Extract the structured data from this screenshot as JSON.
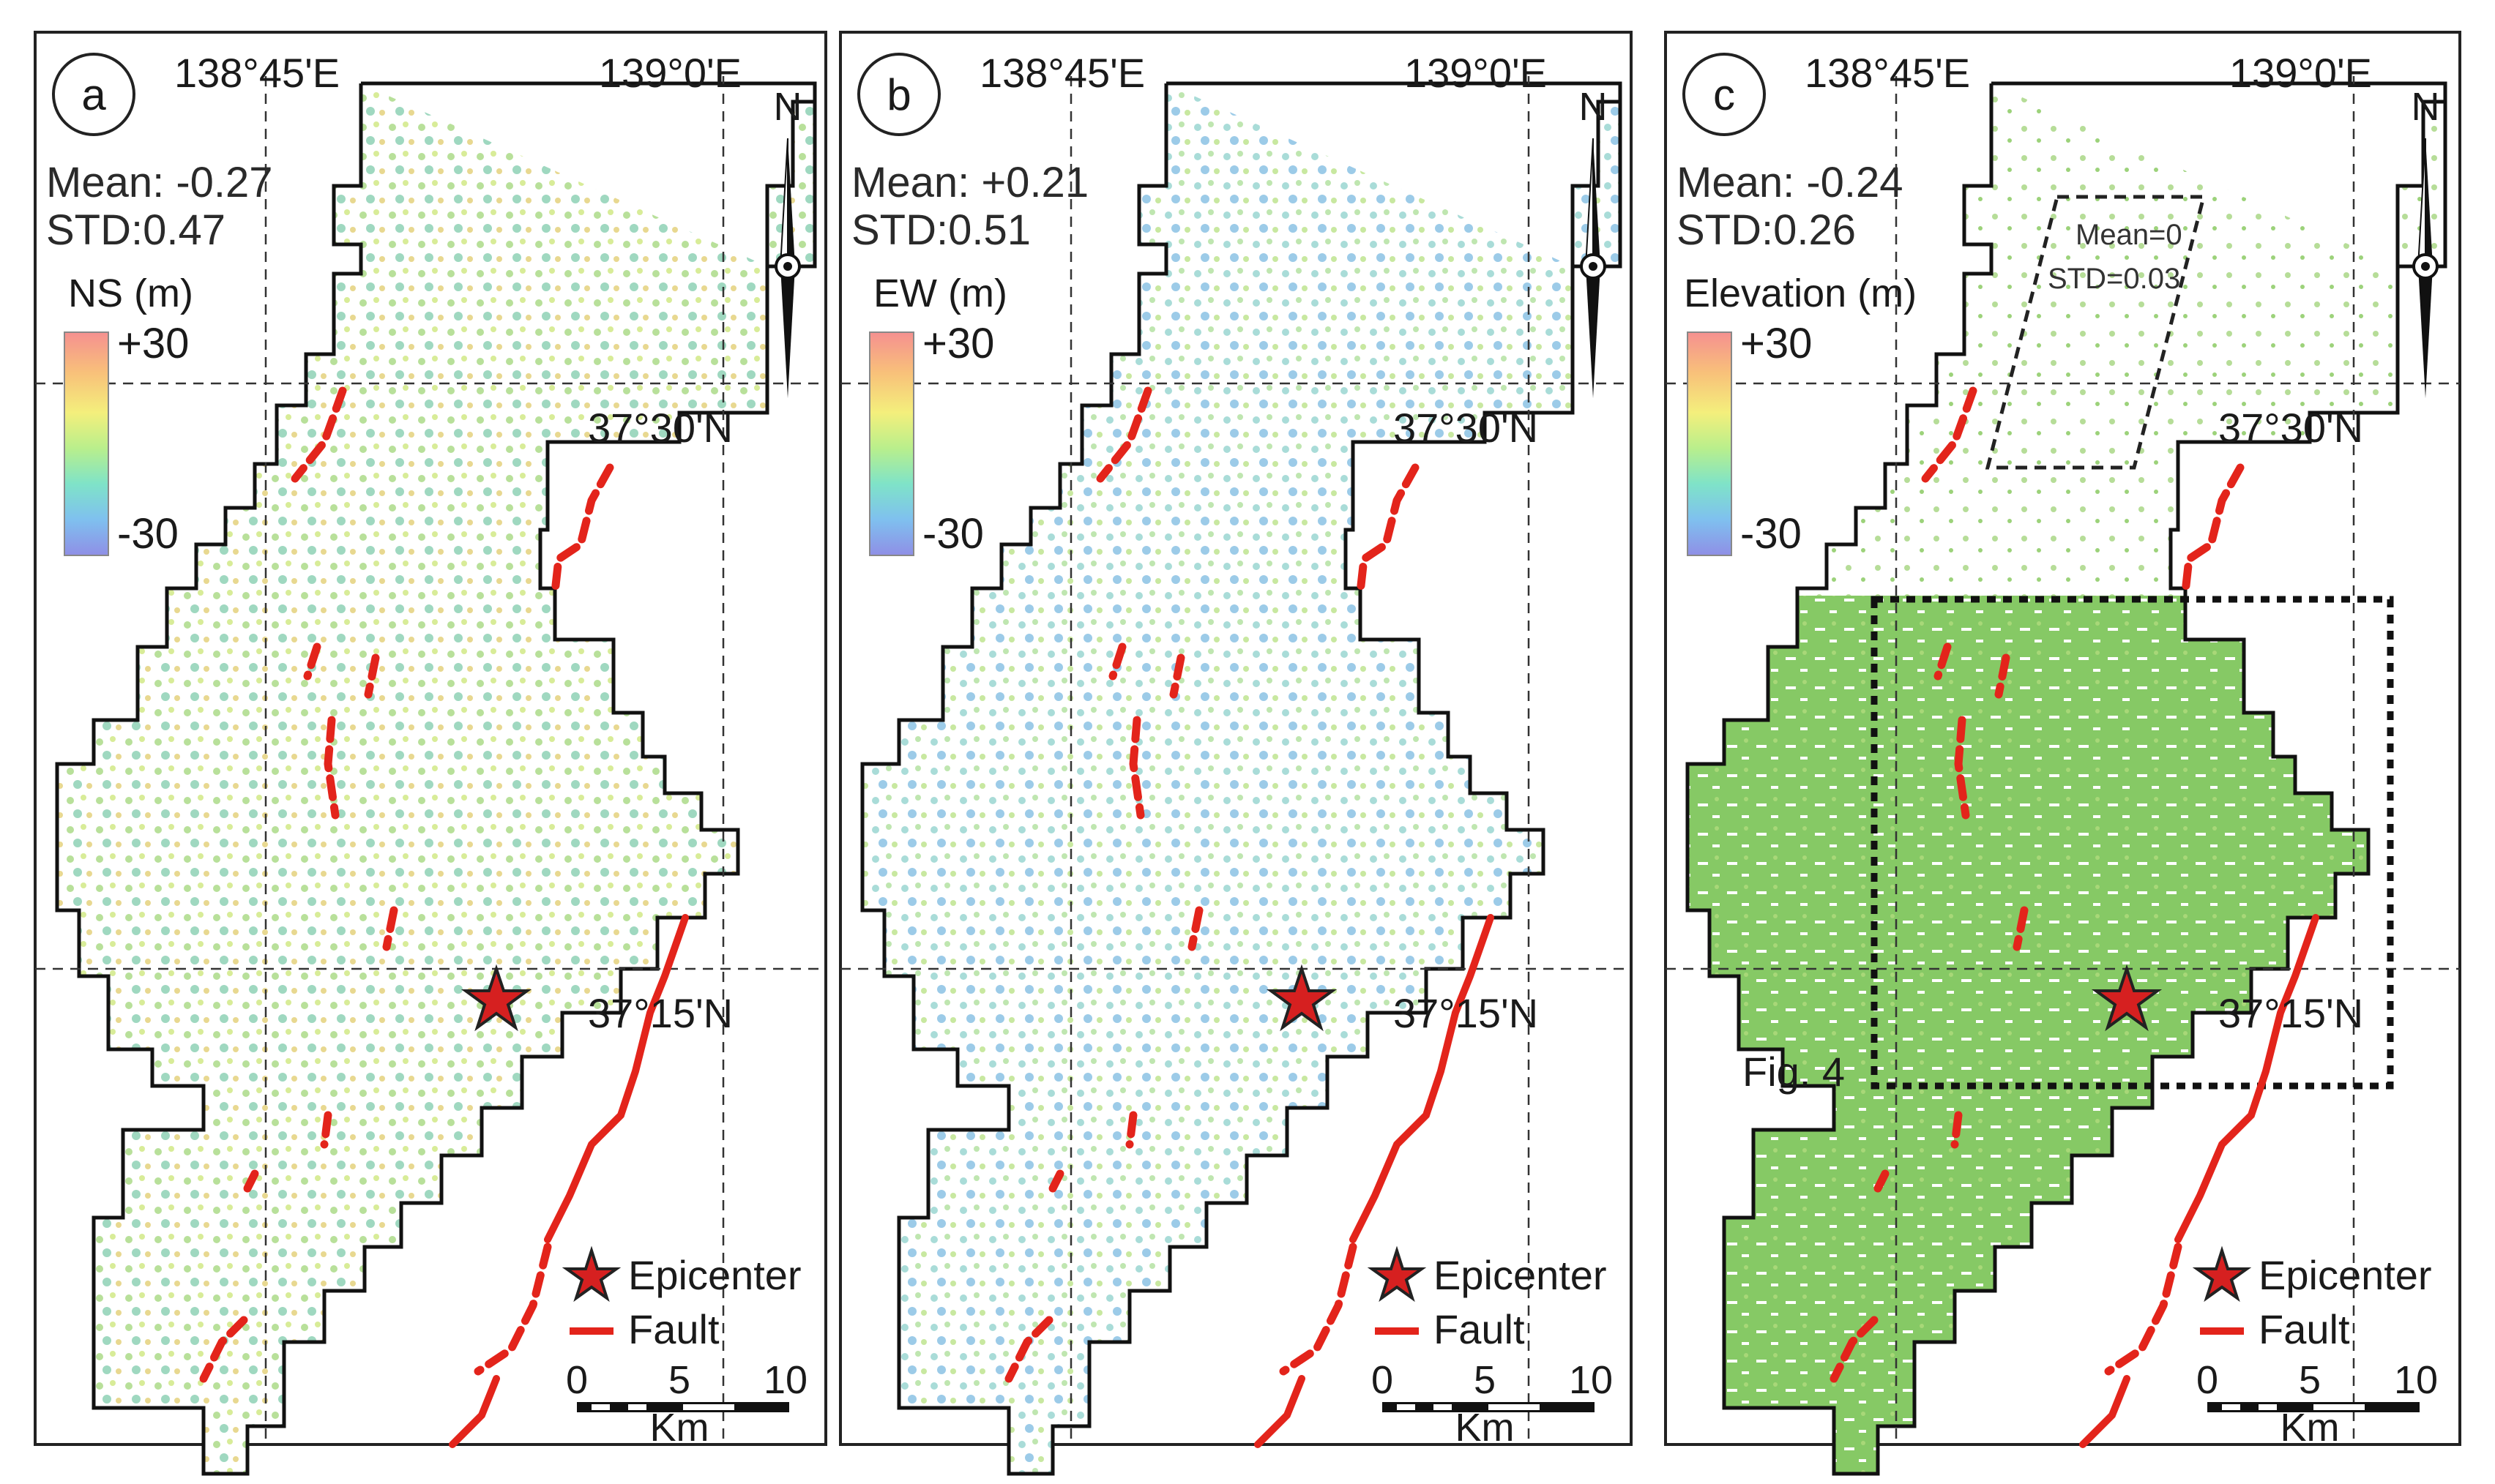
{
  "panels": [
    {
      "letter": "a",
      "mean": "Mean: -0.27",
      "std": "STD:0.47",
      "colorbar_title": "NS (m)",
      "cbar_max": "+30",
      "cbar_min": "-30",
      "fill_color": "#cfe6a8"
    },
    {
      "letter": "b",
      "mean": "Mean: +0.21",
      "std": "STD:0.51",
      "colorbar_title": "EW (m)",
      "cbar_max": "+30",
      "cbar_min": "-30",
      "fill_color": "#bfe3df"
    },
    {
      "letter": "c",
      "mean": "Mean: -0.24",
      "std": "STD:0.26",
      "colorbar_title": "Elevation (m)",
      "cbar_max": "+30",
      "cbar_min": "-30",
      "fill_color": "#8fcf6b"
    }
  ],
  "coords": {
    "lon1": "138°45'E",
    "lon2": "139°0'E",
    "lat1": "37°30'N",
    "lat2": "37°15'N"
  },
  "north": "N",
  "legend": {
    "epicenter": "Epicenter",
    "fault": "Fault"
  },
  "scalebar": {
    "ticks": [
      "0",
      "5",
      "10"
    ],
    "unit": "Km"
  },
  "panel_c_extra": {
    "stable_mean": "Mean=0",
    "stable_std": "STD=0.03",
    "fig_ref": "Fig. 4"
  },
  "colors": {
    "fault": "#e3241b",
    "epicenter": "#d62020",
    "cbar": [
      "#f59090",
      "#f8c07a",
      "#f4ef7c",
      "#b9ef8c",
      "#7fe3c8",
      "#7fc0ef",
      "#8f8fe6"
    ]
  }
}
